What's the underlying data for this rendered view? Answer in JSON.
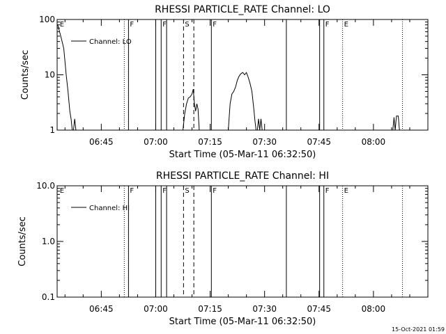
{
  "footer": {
    "timestamp": "15-Oct-2021 01:59"
  },
  "chart_data": [
    {
      "type": "line",
      "title": "RHESSI PARTICLE_RATE Channel: LO",
      "xlabel": "Start Time (05-Mar-11 06:32:50)",
      "ylabel": "Counts/sec",
      "y_scale": "log",
      "ylim": [
        1,
        100
      ],
      "y_ticks": [
        1,
        10,
        100
      ],
      "y_tick_labels": [
        "1",
        "10",
        "100"
      ],
      "xlim": [
        "06:32:50",
        "08:15:00"
      ],
      "x_ticks": [
        "06:45",
        "07:00",
        "07:15",
        "07:30",
        "07:45",
        "08:00"
      ],
      "legend": {
        "position": "top-left",
        "label": "Channel: LO"
      },
      "events": [
        {
          "time": "06:33:10",
          "flag": "E",
          "style": "none"
        },
        {
          "time": "06:51:20",
          "flag": "",
          "style": "dotted"
        },
        {
          "time": "06:52:30",
          "flag": "F",
          "style": "solid"
        },
        {
          "time": "07:00:00",
          "flag": "",
          "style": "solid"
        },
        {
          "time": "07:01:30",
          "flag": "F",
          "style": "solid"
        },
        {
          "time": "07:03:00",
          "flag": "",
          "style": "solid"
        },
        {
          "time": "07:07:40",
          "flag": "S",
          "style": "dashed"
        },
        {
          "time": "07:10:30",
          "flag": "",
          "style": "dashed"
        },
        {
          "time": "07:15:20",
          "flag": "F",
          "style": "solid"
        },
        {
          "time": "07:36:00",
          "flag": "",
          "style": "solid"
        },
        {
          "time": "07:45:10",
          "flag": "",
          "style": "solid"
        },
        {
          "time": "07:46:20",
          "flag": "F",
          "style": "solid"
        },
        {
          "time": "07:51:30",
          "flag": "E",
          "style": "dotted"
        },
        {
          "time": "08:08:00",
          "flag": "",
          "style": "dotted"
        }
      ],
      "series": [
        {
          "values": [
            [
              [
                "06:33:00",
                80
              ],
              [
                "06:34:00",
                45
              ],
              [
                "06:34:40",
                30
              ],
              [
                "06:35:20",
                10
              ],
              [
                "06:35:50",
                5
              ],
              [
                "06:36:20",
                2.2
              ],
              [
                "06:36:40",
                1.6
              ],
              [
                "06:37:00",
                1
              ]
            ],
            [
              [
                "06:37:20",
                1
              ],
              [
                "06:37:40",
                1.6
              ],
              [
                "06:38:00",
                1
              ]
            ],
            [
              [
                "07:07:30",
                1
              ],
              [
                "07:08:00",
                2
              ],
              [
                "07:08:30",
                3
              ],
              [
                "07:09:00",
                3.8
              ],
              [
                "07:09:30",
                4
              ],
              [
                "07:10:00",
                4.5
              ],
              [
                "07:10:20",
                5.5
              ],
              [
                "07:10:40",
                3
              ],
              [
                "07:11:00",
                2.2
              ],
              [
                "07:11:20",
                3
              ],
              [
                "07:11:40",
                2.4
              ],
              [
                "07:12:00",
                1
              ]
            ],
            [
              [
                "07:20:00",
                1
              ],
              [
                "07:20:30",
                3
              ],
              [
                "07:21:00",
                4.5
              ],
              [
                "07:21:30",
                5
              ],
              [
                "07:22:00",
                6
              ],
              [
                "07:22:30",
                8
              ],
              [
                "07:23:00",
                9.5
              ],
              [
                "07:23:30",
                10.5
              ],
              [
                "07:24:00",
                11
              ],
              [
                "07:24:30",
                10
              ],
              [
                "07:25:00",
                11
              ],
              [
                "07:25:30",
                9
              ],
              [
                "07:26:00",
                7
              ],
              [
                "07:26:30",
                5
              ],
              [
                "07:27:00",
                2.5
              ],
              [
                "07:27:20",
                1.5
              ],
              [
                "07:27:40",
                1
              ]
            ],
            [
              [
                "07:28:00",
                1
              ],
              [
                "07:28:20",
                1.6
              ],
              [
                "07:28:40",
                1
              ],
              [
                "07:29:00",
                1.6
              ],
              [
                "07:29:20",
                1
              ]
            ],
            [
              [
                "08:05:20",
                1
              ],
              [
                "08:05:40",
                1.7
              ],
              [
                "08:06:00",
                1
              ],
              [
                "08:06:20",
                1.8
              ],
              [
                "08:06:50",
                1.8
              ],
              [
                "08:07:10",
                1
              ]
            ]
          ]
        }
      ]
    },
    {
      "type": "line",
      "title": "RHESSI PARTICLE_RATE Channel: HI",
      "xlabel": "Start Time (05-Mar-11 06:32:50)",
      "ylabel": "Counts/sec",
      "y_scale": "log",
      "ylim": [
        0.1,
        10
      ],
      "y_ticks": [
        0.1,
        1,
        10
      ],
      "y_tick_labels": [
        "0.1",
        "1.0",
        "10.0"
      ],
      "xlim": [
        "06:32:50",
        "08:15:00"
      ],
      "x_ticks": [
        "06:45",
        "07:00",
        "07:15",
        "07:30",
        "07:45",
        "08:00"
      ],
      "legend": {
        "position": "top-left",
        "label": "Channel: HI"
      },
      "events": [
        {
          "time": "06:33:10",
          "flag": "E",
          "style": "none"
        },
        {
          "time": "06:51:20",
          "flag": "",
          "style": "dotted"
        },
        {
          "time": "06:52:30",
          "flag": "F",
          "style": "solid"
        },
        {
          "time": "07:00:00",
          "flag": "",
          "style": "solid"
        },
        {
          "time": "07:01:30",
          "flag": "F",
          "style": "solid"
        },
        {
          "time": "07:03:00",
          "flag": "",
          "style": "solid"
        },
        {
          "time": "07:07:40",
          "flag": "S",
          "style": "dashed"
        },
        {
          "time": "07:10:30",
          "flag": "",
          "style": "dashed"
        },
        {
          "time": "07:15:20",
          "flag": "F",
          "style": "solid"
        },
        {
          "time": "07:36:00",
          "flag": "",
          "style": "solid"
        },
        {
          "time": "07:45:10",
          "flag": "",
          "style": "solid"
        },
        {
          "time": "07:46:20",
          "flag": "F",
          "style": "solid"
        },
        {
          "time": "07:51:30",
          "flag": "E",
          "style": "dotted"
        },
        {
          "time": "08:08:00",
          "flag": "",
          "style": "dotted"
        }
      ],
      "series": [
        {
          "values": []
        }
      ]
    }
  ]
}
